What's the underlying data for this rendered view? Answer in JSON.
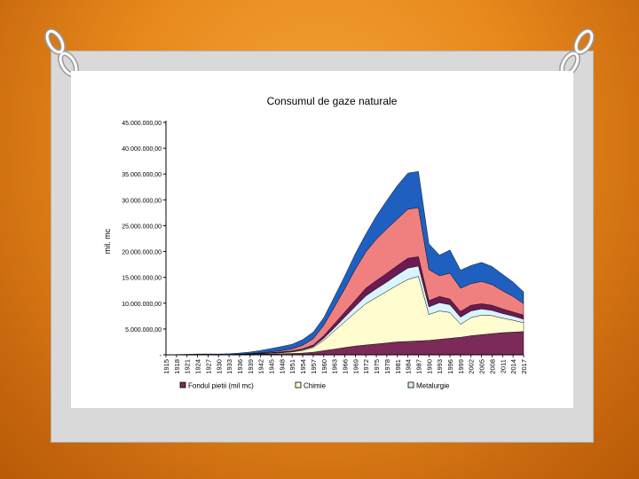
{
  "chart_data": {
    "type": "area",
    "title": "Consumul de gaze naturale",
    "xlabel": "",
    "ylabel": "mil. mc",
    "ylim": [
      0,
      45000000
    ],
    "yticks": [
      "-",
      "5.000.000,00",
      "10.000.000,00",
      "15.000.000,00",
      "20.000.000,00",
      "25.000.000,00",
      "30.000.000,00",
      "35.000.000,00",
      "40.000.000,00",
      "45.000.000,00"
    ],
    "xticks": [
      "1915",
      "1918",
      "1921",
      "1924",
      "1927",
      "1930",
      "1933",
      "1936",
      "1939",
      "1942",
      "1945",
      "1948",
      "1951",
      "1954",
      "1957",
      "1960",
      "1963",
      "1966",
      "1969",
      "1972",
      "1975",
      "1978",
      "1981",
      "1984",
      "1987",
      "1990",
      "1993",
      "1996",
      "1999",
      "2002",
      "2005",
      "2008",
      "2011",
      "2014",
      "2017"
    ],
    "grid": false,
    "legend_position": "bottom",
    "x": [
      1915,
      1918,
      1921,
      1924,
      1927,
      1930,
      1933,
      1936,
      1939,
      1942,
      1945,
      1948,
      1951,
      1954,
      1957,
      1960,
      1963,
      1966,
      1969,
      1972,
      1975,
      1978,
      1981,
      1984,
      1987,
      1990,
      1993,
      1996,
      1999,
      2002,
      2005,
      2008,
      2011,
      2014,
      2017
    ],
    "series": [
      {
        "name": "Fondul pietii (mil mc)",
        "color": "#7b2a5a",
        "values": [
          0,
          20000,
          40000,
          60000,
          60000,
          50000,
          60000,
          70000,
          90000,
          120000,
          150000,
          200000,
          250000,
          350000,
          500000,
          800000,
          1100000,
          1400000,
          1700000,
          1900000,
          2100000,
          2300000,
          2500000,
          2600000,
          2700000,
          2800000,
          3000000,
          3200000,
          3400000,
          3700000,
          3900000,
          4100000,
          4300000,
          4400000,
          4500000
        ]
      },
      {
        "name": "Chimie",
        "color": "#fffdd0",
        "values": [
          0,
          0,
          0,
          0,
          0,
          0,
          0,
          20000,
          50000,
          100000,
          150000,
          200000,
          300000,
          500000,
          900000,
          2000000,
          3500000,
          5000000,
          6500000,
          8000000,
          9000000,
          10000000,
          11000000,
          12000000,
          12500000,
          5000000,
          5500000,
          5000000,
          2500000,
          3500000,
          3800000,
          3500000,
          2800000,
          2300000,
          1700000
        ]
      },
      {
        "name": "Metalurgie",
        "color": "#d8f4ff",
        "values": [
          0,
          0,
          0,
          0,
          0,
          0,
          0,
          10000,
          20000,
          40000,
          60000,
          80000,
          100000,
          150000,
          200000,
          400000,
          600000,
          900000,
          1200000,
          1500000,
          1700000,
          1800000,
          2000000,
          2200000,
          2000000,
          1500000,
          1600000,
          1500000,
          1400000,
          1300000,
          1200000,
          1000000,
          900000,
          800000,
          700000
        ]
      },
      {
        "name": "",
        "color": "#6b1a52",
        "values": [
          0,
          0,
          0,
          0,
          0,
          0,
          0,
          10000,
          20000,
          40000,
          60000,
          80000,
          100000,
          150000,
          300000,
          500000,
          800000,
          1000000,
          1200000,
          1500000,
          1600000,
          1700000,
          1800000,
          1900000,
          1800000,
          1200000,
          1200000,
          1100000,
          1100000,
          1100000,
          1000000,
          1000000,
          900000,
          800000,
          800000
        ]
      },
      {
        "name": "",
        "color": "#f08080",
        "values": [
          0,
          0,
          0,
          0,
          0,
          0,
          0,
          30000,
          60000,
          100000,
          150000,
          250000,
          400000,
          700000,
          1200000,
          2000000,
          3200000,
          4500000,
          6000000,
          7000000,
          8000000,
          8600000,
          9000000,
          9500000,
          9500000,
          6000000,
          4000000,
          5000000,
          4500000,
          4200000,
          4300000,
          4000000,
          3500000,
          3000000,
          2200000
        ]
      },
      {
        "name": "",
        "color": "#1f5fbf",
        "values": [
          0,
          30000,
          60000,
          100000,
          120000,
          100000,
          140000,
          200000,
          300000,
          450000,
          650000,
          800000,
          900000,
          1100000,
          1300000,
          1500000,
          2000000,
          2500000,
          3000000,
          3500000,
          4500000,
          5500000,
          6500000,
          7000000,
          7000000,
          5000000,
          4000000,
          4500000,
          3500000,
          3500000,
          3700000,
          3500000,
          3200000,
          2800000,
          2300000
        ]
      }
    ]
  }
}
